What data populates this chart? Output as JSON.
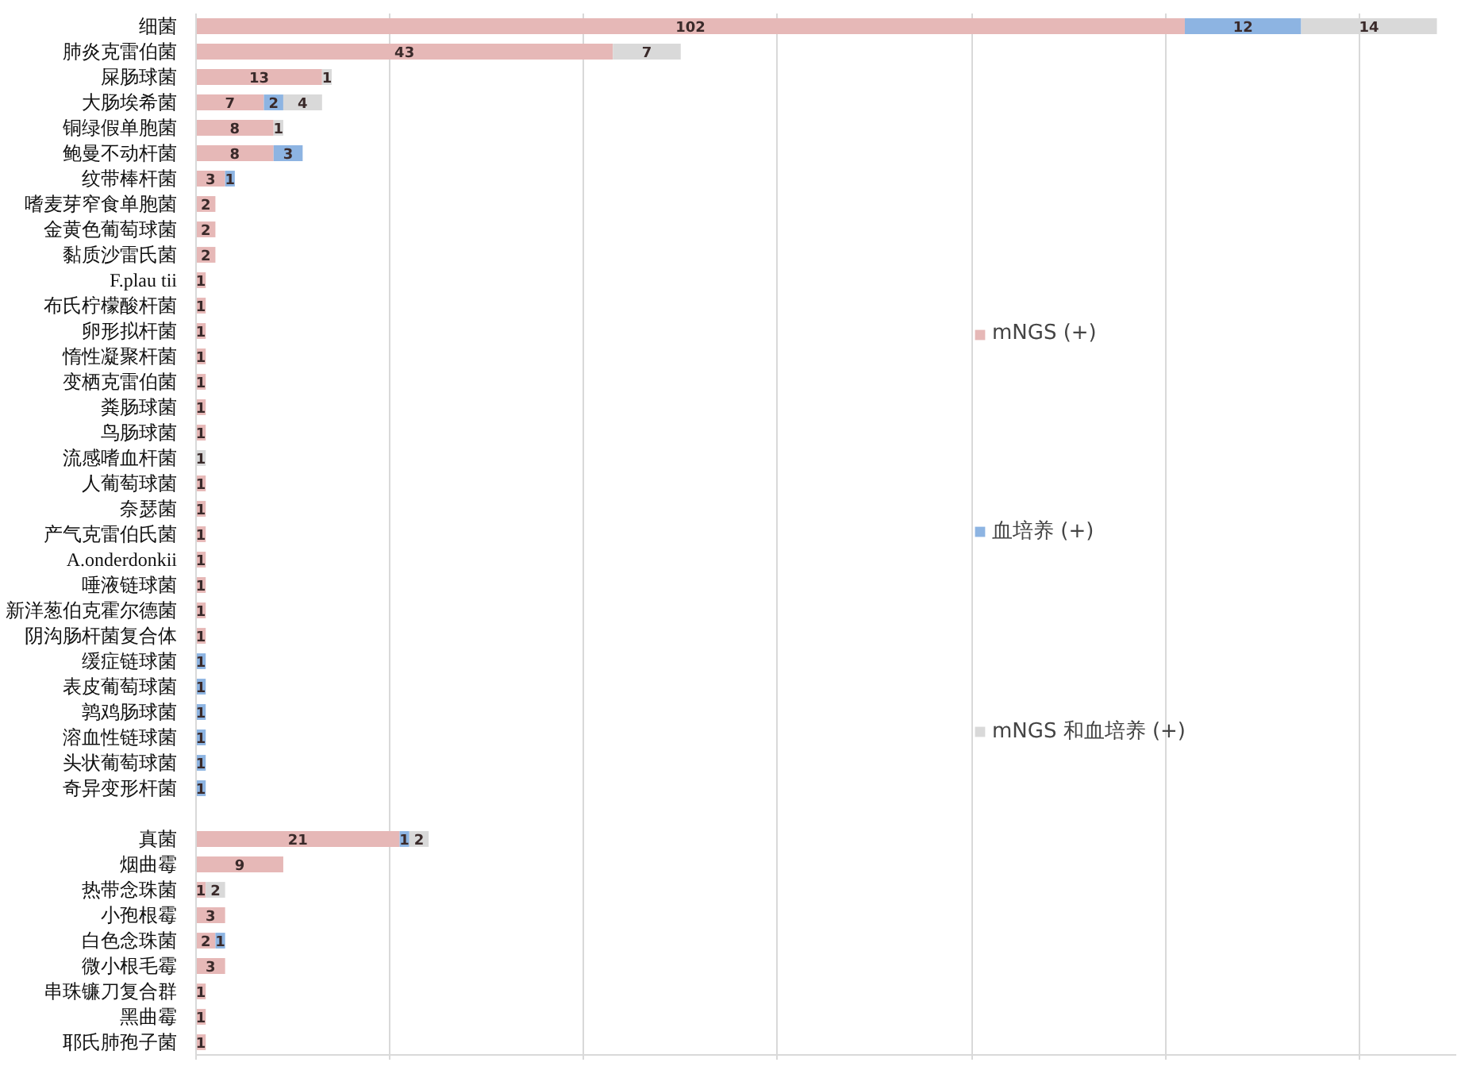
{
  "chart_data": {
    "type": "bar",
    "orientation": "horizontal",
    "stacked": true,
    "categories": [
      "细菌",
      "肺炎克雷伯菌",
      "屎肠球菌",
      "大肠埃希菌",
      "铜绿假单胞菌",
      "鲍曼不动杆菌",
      "纹带棒杆菌",
      "嗜麦芽窄食单胞菌",
      "金黄色葡萄球菌",
      "黏质沙雷氏菌",
      "F.plau tii",
      "布氏柠檬酸杆菌",
      "卵形拟杆菌",
      "惰性凝聚杆菌",
      "变栖克雷伯菌",
      "粪肠球菌",
      "鸟肠球菌",
      "流感嗜血杆菌",
      "人葡萄球菌",
      "奈瑟菌",
      "产气克雷伯氏菌",
      "A.onderdonkii",
      "唾液链球菌",
      "新洋葱伯克霍尔德菌",
      "阴沟肠杆菌复合体",
      "缓症链球菌",
      "表皮葡萄球菌",
      "鹑鸡肠球菌",
      "溶血性链球菌",
      "头状葡萄球菌",
      "奇异变形杆菌",
      null,
      "真菌",
      "烟曲霉",
      "热带念珠菌",
      "小孢根霉",
      "白色念珠菌",
      "微小根毛霉",
      "串珠镰刀复合群",
      "黑曲霉",
      "耶氏肺孢子菌"
    ],
    "series": [
      {
        "name": "mNGS (+)",
        "color": "#e6b8b7",
        "values": [
          102,
          43,
          13,
          7,
          8,
          8,
          3,
          2,
          2,
          2,
          1,
          1,
          1,
          1,
          1,
          1,
          1,
          null,
          1,
          1,
          1,
          1,
          1,
          1,
          1,
          null,
          null,
          null,
          null,
          null,
          null,
          null,
          21,
          9,
          1,
          3,
          2,
          3,
          1,
          1,
          1
        ]
      },
      {
        "name": "血培养 (+)",
        "color": "#8db4e2",
        "values": [
          12,
          null,
          null,
          2,
          null,
          3,
          1,
          null,
          null,
          null,
          null,
          null,
          null,
          null,
          null,
          null,
          null,
          null,
          null,
          null,
          null,
          null,
          null,
          null,
          null,
          1,
          1,
          1,
          1,
          1,
          1,
          null,
          1,
          null,
          null,
          null,
          1,
          null,
          null,
          null,
          null
        ]
      },
      {
        "name": "mNGS 和血培养 (+)",
        "color": "#d9d9d9",
        "values": [
          14,
          7,
          1,
          4,
          1,
          null,
          null,
          null,
          null,
          null,
          null,
          null,
          null,
          null,
          null,
          null,
          null,
          1,
          null,
          null,
          null,
          null,
          null,
          null,
          null,
          null,
          null,
          null,
          null,
          null,
          null,
          null,
          2,
          null,
          2,
          null,
          null,
          null,
          null,
          null,
          null
        ]
      }
    ],
    "xlim": [
      0,
      130
    ],
    "xticks": [
      {
        "value": 0,
        "label": null
      },
      {
        "value": 20,
        "label": null
      },
      {
        "value": 40,
        "label": null
      },
      {
        "value": 60,
        "label": null
      },
      {
        "value": 80,
        "label": null
      },
      {
        "value": 100,
        "label": null
      },
      {
        "value": 120,
        "label": null
      }
    ],
    "tick_labels": "y",
    "grid": "x",
    "legend": "right",
    "data_labels": true
  }
}
